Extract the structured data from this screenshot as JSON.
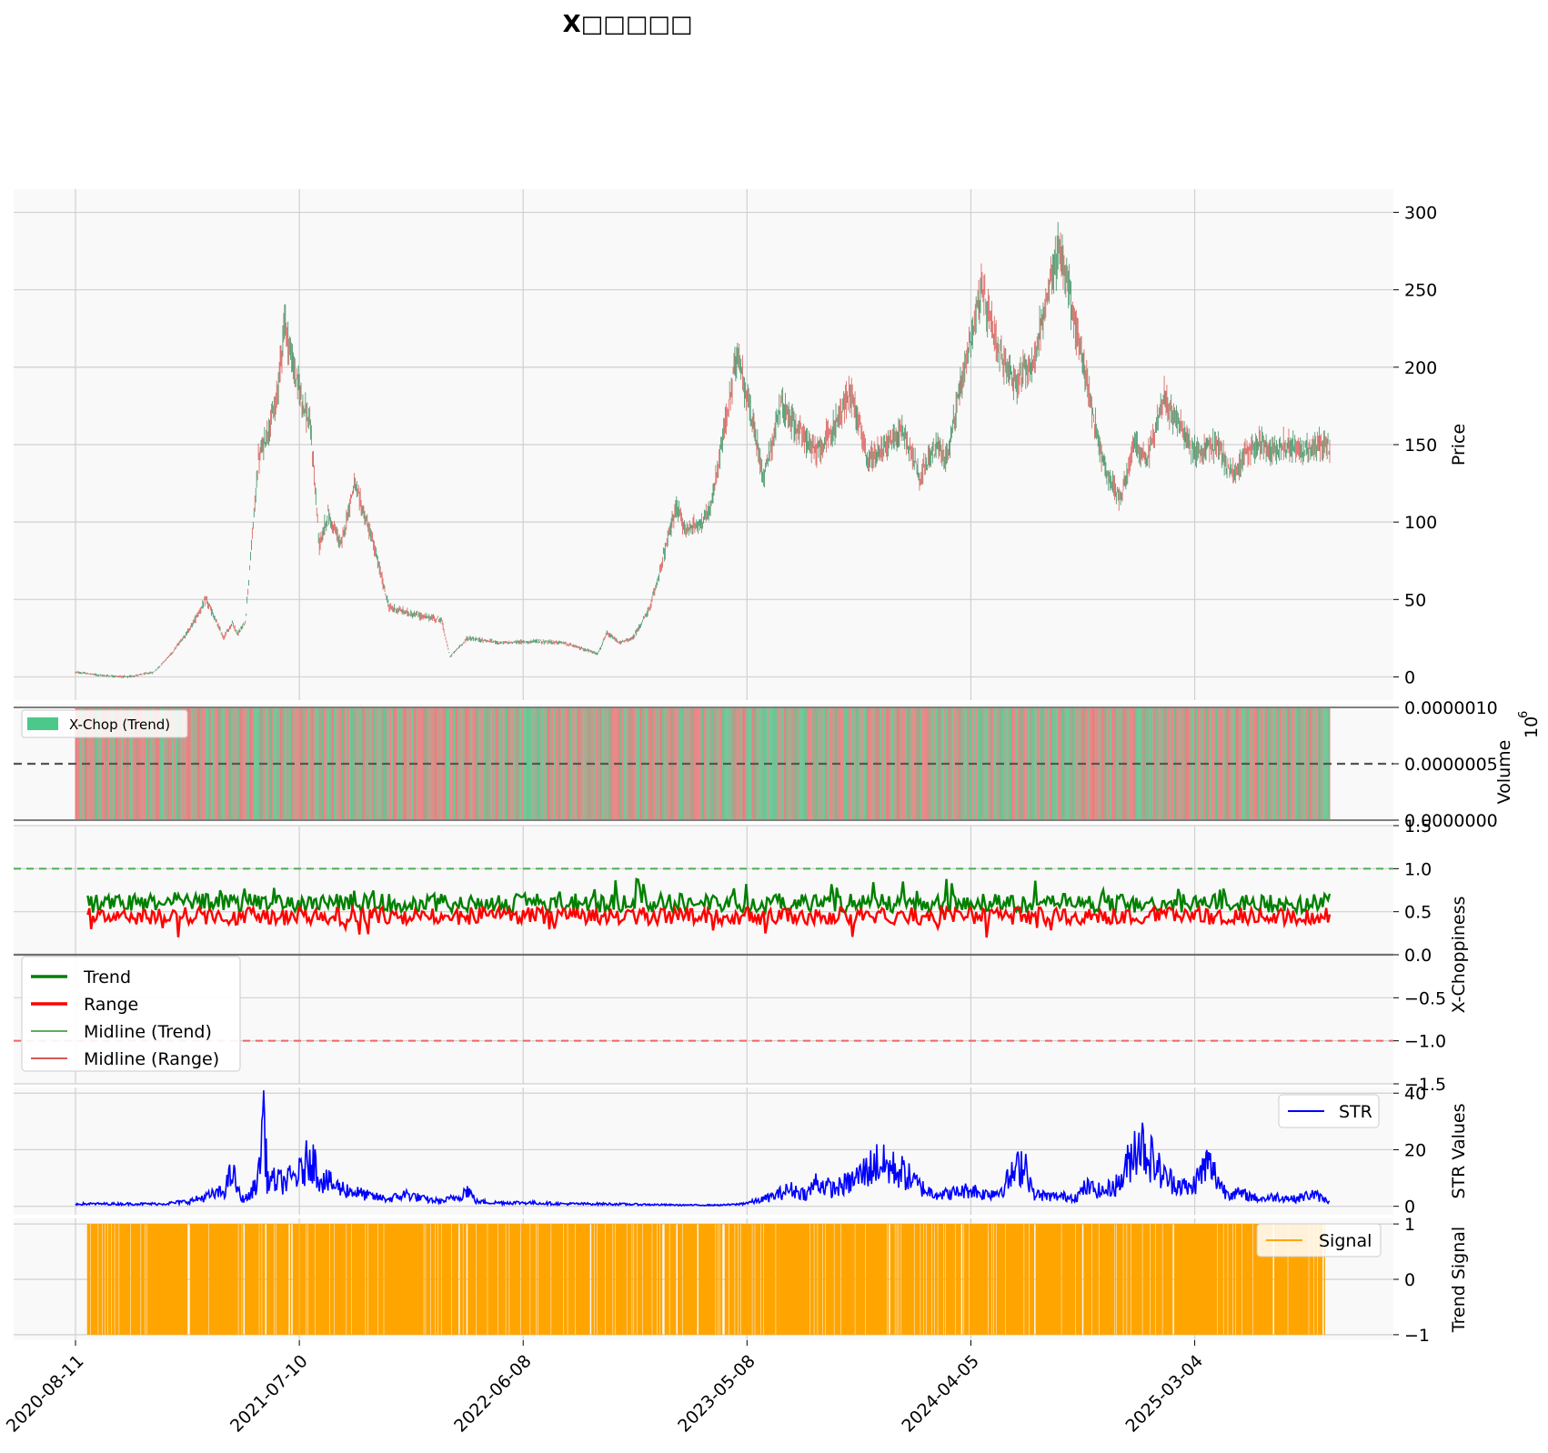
{
  "chart_data": [
    {
      "type": "line",
      "panel": "price",
      "title": "X□□□□□",
      "ylabel": "Price",
      "ylim": [
        -15,
        315
      ],
      "yticks": [
        0,
        50,
        100,
        150,
        200,
        250,
        300
      ],
      "xticks": [
        "2020-08-11",
        "2021-07-10",
        "2022-06-08",
        "2023-05-08",
        "2024-04-05",
        "2025-03-04"
      ],
      "grid": true,
      "x_index": [
        0,
        30,
        60,
        90,
        110,
        130,
        150,
        170,
        180,
        186,
        189,
        195,
        210,
        230,
        240,
        250,
        270,
        280,
        290,
        305,
        320,
        340,
        360,
        390,
        410,
        420,
        430,
        450,
        490,
        530,
        560,
        600,
        610,
        625,
        640,
        660,
        690,
        700,
        720,
        730,
        760,
        790,
        810,
        850,
        870,
        890,
        910,
        950,
        970,
        990,
        1000,
        1010,
        1040,
        1060,
        1080,
        1100,
        1130,
        1150,
        1165,
        1175,
        1185,
        1200,
        1215,
        1230,
        1250,
        1265,
        1280,
        1290,
        1300,
        1310,
        1330,
        1345,
        1360,
        1375,
        1395,
        1400,
        1410,
        1430,
        1440
      ],
      "close": [
        3,
        1,
        0,
        3,
        15,
        30,
        50,
        25,
        35,
        28,
        30,
        35,
        140,
        175,
        230,
        200,
        160,
        85,
        105,
        85,
        125,
        90,
        45,
        40,
        38,
        37,
        13,
        25,
        22,
        23,
        22,
        15,
        28,
        22,
        25,
        45,
        110,
        95,
        100,
        110,
        210,
        130,
        175,
        145,
        160,
        185,
        140,
        160,
        130,
        150,
        140,
        170,
        250,
        210,
        190,
        205,
        280,
        220,
        180,
        150,
        130,
        115,
        150,
        140,
        180,
        165,
        150,
        145,
        148,
        150,
        130,
        145,
        150,
        148,
        150,
        147,
        146,
        150,
        148
      ]
    },
    {
      "type": "bar",
      "panel": "volume",
      "ylabel": "Volume",
      "offset_label": "1e6",
      "ylim": [
        0,
        1e-06
      ],
      "yticks": [
        "0.0000000",
        "0.0000005",
        "0.0000010"
      ],
      "legend": [
        "X-Chop (Trend)"
      ],
      "legend_position": "upper-left",
      "colors": {
        "trend": "#3cb371",
        "range": "#e05a5a"
      }
    },
    {
      "type": "line",
      "panel": "x-choppiness",
      "ylabel": "X-Choppiness",
      "ylim": [
        -1.5,
        1.5
      ],
      "yticks": [
        "−1.5",
        "−1.0",
        "−0.5",
        "0.0",
        "0.5",
        "1.0",
        "1.5"
      ],
      "hlines": [
        1.0,
        0.0,
        -1.0
      ],
      "series": [
        {
          "name": "Trend",
          "color": "#008000",
          "mean": 0.6,
          "min": 0.3,
          "max": 0.88
        },
        {
          "name": "Range",
          "color": "#ff0000",
          "mean": 0.45,
          "min": 0.2,
          "max": 0.6
        },
        {
          "name": "Midline (Trend)",
          "color": "#2e8b2e"
        },
        {
          "name": "Midline (Range)",
          "color": "#cc2222"
        }
      ],
      "legend_position": "lower-left"
    },
    {
      "type": "line",
      "panel": "str",
      "ylabel": "STR Values",
      "ylim": [
        -3,
        42
      ],
      "yticks": [
        0,
        20,
        40
      ],
      "series": [
        {
          "name": "STR",
          "color": "#0000ff"
        }
      ],
      "x_index": [
        0,
        100,
        130,
        140,
        150,
        170,
        180,
        190,
        200,
        210,
        216,
        220,
        240,
        250,
        260,
        270,
        280,
        300,
        320,
        340,
        360,
        380,
        400,
        420,
        440,
        450,
        460,
        480,
        520,
        560,
        600,
        640,
        700,
        740,
        760,
        780,
        800,
        820,
        840,
        850,
        870,
        890,
        920,
        950,
        970,
        980,
        1000,
        1030,
        1040,
        1060,
        1090,
        1100,
        1120,
        1150,
        1160,
        1180,
        1200,
        1220,
        1250,
        1280,
        1300,
        1320,
        1340,
        1360,
        1380,
        1400,
        1420,
        1440
      ],
      "values": [
        1,
        1,
        2,
        3,
        4,
        6,
        14,
        3,
        4,
        12,
        41,
        11,
        10,
        12,
        14,
        22,
        12,
        8,
        6,
        4,
        3,
        5,
        3,
        2,
        4,
        7,
        2,
        1.5,
        1.5,
        1,
        1,
        0.8,
        0.5,
        0.5,
        0.8,
        2,
        4,
        7,
        5,
        10,
        7,
        10,
        18,
        14,
        8,
        6,
        5,
        7,
        5,
        6,
        19,
        5,
        4,
        4,
        8,
        6,
        10,
        28,
        12,
        7,
        18,
        6,
        5,
        3,
        4,
        3,
        5,
        2
      ]
    },
    {
      "type": "line",
      "panel": "signal",
      "ylabel": "Trend Signal",
      "ylim": [
        -1.1,
        1.1
      ],
      "yticks": [
        "−1",
        "0",
        "1"
      ],
      "series": [
        {
          "name": "Signal",
          "color": "#ffa500"
        }
      ],
      "values_range": [
        -1,
        1
      ]
    }
  ]
}
